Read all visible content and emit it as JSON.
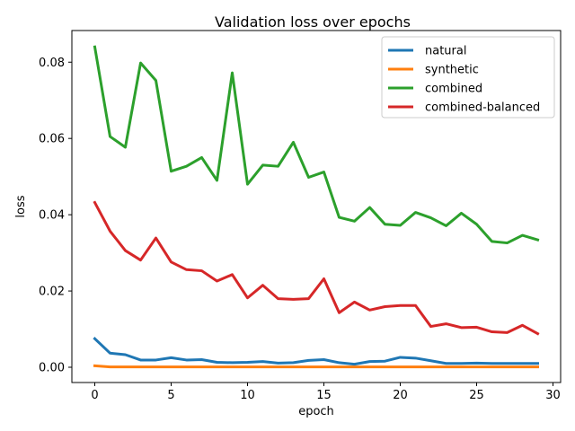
{
  "chart_data": {
    "type": "line",
    "title": "Validation loss over epochs",
    "xlabel": "epoch",
    "ylabel": "loss",
    "xlim": [
      -1.5,
      30.5
    ],
    "ylim": [
      -0.004,
      0.0883
    ],
    "xticks": [
      0,
      5,
      10,
      15,
      20,
      25,
      30
    ],
    "xtick_labels": [
      "0",
      "5",
      "10",
      "15",
      "20",
      "25",
      "30"
    ],
    "yticks": [
      0.0,
      0.02,
      0.04,
      0.06,
      0.08
    ],
    "ytick_labels": [
      "0.00",
      "0.02",
      "0.04",
      "0.06",
      "0.08"
    ],
    "grid": false,
    "legend_position": "top-right",
    "x": [
      0,
      1,
      2,
      3,
      4,
      5,
      6,
      7,
      8,
      9,
      10,
      11,
      12,
      13,
      14,
      15,
      16,
      17,
      18,
      19,
      20,
      21,
      22,
      23,
      24,
      25,
      26,
      27,
      28,
      29
    ],
    "series": [
      {
        "name": "natural",
        "color": "#1f77b4",
        "values": [
          0.0075,
          0.0037,
          0.0033,
          0.0019,
          0.0019,
          0.0025,
          0.0019,
          0.002,
          0.0013,
          0.0012,
          0.0013,
          0.0015,
          0.0011,
          0.0012,
          0.0018,
          0.002,
          0.0012,
          0.0008,
          0.0015,
          0.0016,
          0.0026,
          0.0024,
          0.0017,
          0.001,
          0.001,
          0.0011,
          0.001,
          0.001,
          0.001,
          0.001
        ]
      },
      {
        "name": "synthetic",
        "color": "#ff7f0e",
        "values": [
          0.0004,
          0.0001,
          0.0001,
          0.0001,
          0.0001,
          0.0001,
          0.0001,
          0.0001,
          0.0001,
          0.0001,
          0.0001,
          0.0001,
          0.0001,
          0.0001,
          0.0001,
          0.0001,
          0.0001,
          0.0001,
          0.0001,
          0.0001,
          0.0001,
          0.0001,
          0.0001,
          0.0001,
          0.0001,
          0.0001,
          0.0001,
          0.0001,
          0.0001,
          0.0001
        ]
      },
      {
        "name": "combined",
        "color": "#2ca02c",
        "values": [
          0.084,
          0.0605,
          0.0577,
          0.0798,
          0.0752,
          0.0514,
          0.0527,
          0.055,
          0.049,
          0.0772,
          0.048,
          0.053,
          0.0527,
          0.059,
          0.0498,
          0.0512,
          0.0393,
          0.0383,
          0.0419,
          0.0375,
          0.0372,
          0.0406,
          0.0392,
          0.0371,
          0.0404,
          0.0375,
          0.033,
          0.0326,
          0.0346,
          0.0334
        ]
      },
      {
        "name": "combined-balanced",
        "color": "#d62728",
        "values": [
          0.0432,
          0.0357,
          0.0306,
          0.0281,
          0.0339,
          0.0276,
          0.0256,
          0.0253,
          0.0226,
          0.0243,
          0.0182,
          0.0215,
          0.018,
          0.0178,
          0.018,
          0.0232,
          0.0143,
          0.0171,
          0.015,
          0.0159,
          0.0162,
          0.0162,
          0.0107,
          0.0114,
          0.0104,
          0.0105,
          0.0093,
          0.0091,
          0.011,
          0.0088
        ]
      }
    ]
  }
}
